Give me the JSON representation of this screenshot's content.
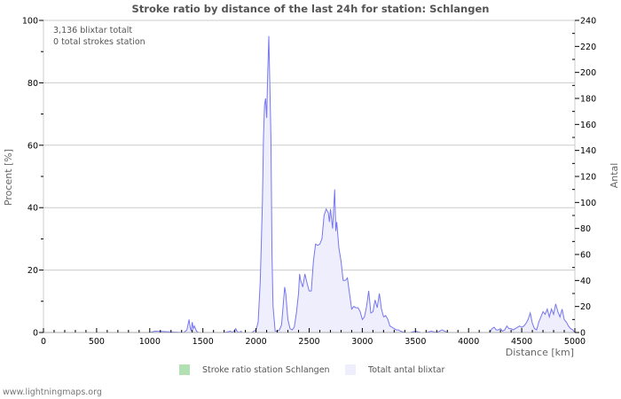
{
  "title": "Stroke ratio by distance of the last 24h for station: Schlangen",
  "info": {
    "total_strokes": "3,136 blixtar totalt",
    "station_strokes": "0 total strokes station"
  },
  "axes": {
    "left_label": "Procent   [%]",
    "right_label": "Antal",
    "x_label": "Distance   [km]"
  },
  "legend": {
    "items": [
      {
        "label": "Stroke ratio station Schlangen",
        "color": "#b3e0b3"
      },
      {
        "label": "Totalt antal blixtar",
        "color": "#eeeefc"
      }
    ]
  },
  "footer": "www.lightningmaps.org",
  "colors": {
    "line": "#7777ee",
    "fill": "#eeeefc",
    "grid": "#cccccc"
  },
  "chart_data": {
    "type": "area",
    "title": "Stroke ratio by distance of the last 24h for station: Schlangen",
    "xlabel": "Distance [km]",
    "ylabel": "Procent [%]",
    "ylabel_right": "Antal",
    "xlim": [
      0,
      5000
    ],
    "ylim": [
      0,
      100
    ],
    "ylim_right": [
      0,
      240
    ],
    "x_ticks": [
      0,
      500,
      1000,
      1500,
      2000,
      2500,
      3000,
      3500,
      4000,
      4500,
      5000
    ],
    "y_ticks": [
      0,
      20,
      40,
      60,
      80,
      100
    ],
    "y_ticks_right": [
      0,
      20,
      40,
      60,
      80,
      100,
      120,
      140,
      160,
      180,
      200,
      220,
      240
    ],
    "grid": true,
    "legend_position": "bottom",
    "series": [
      {
        "name": "Stroke ratio station Schlangen",
        "axis": "left",
        "x": [],
        "values": []
      },
      {
        "name": "Totalt antal blixtar",
        "axis": "right",
        "x": [
          0,
          1000,
          1050,
          1320,
          1350,
          1370,
          1380,
          1390,
          1400,
          1410,
          1420,
          1440,
          1460,
          1500,
          1700,
          1760,
          1780,
          1800,
          1810,
          1820,
          1840,
          1860,
          1870,
          1900,
          1960,
          2000,
          2020,
          2040,
          2060,
          2070,
          2080,
          2090,
          2100,
          2110,
          2120,
          2130,
          2140,
          2150,
          2160,
          2180,
          2200,
          2220,
          2240,
          2260,
          2270,
          2280,
          2300,
          2320,
          2340,
          2360,
          2380,
          2400,
          2410,
          2420,
          2440,
          2460,
          2480,
          2500,
          2520,
          2540,
          2560,
          2580,
          2600,
          2620,
          2640,
          2660,
          2680,
          2690,
          2700,
          2720,
          2740,
          2750,
          2760,
          2780,
          2800,
          2820,
          2840,
          2860,
          2880,
          2900,
          2920,
          2940,
          2960,
          2980,
          3000,
          3020,
          3040,
          3060,
          3080,
          3100,
          3120,
          3140,
          3160,
          3180,
          3200,
          3220,
          3240,
          3260,
          3280,
          3300,
          3320,
          3340,
          3360,
          3400,
          3450,
          3500,
          3550,
          3600,
          3650,
          3700,
          3750,
          3800,
          3900,
          4000,
          4100,
          4200,
          4220,
          4240,
          4260,
          4280,
          4300,
          4320,
          4340,
          4360,
          4380,
          4400,
          4420,
          4440,
          4460,
          4480,
          4500,
          4520,
          4540,
          4560,
          4580,
          4600,
          4620,
          4640,
          4660,
          4680,
          4700,
          4720,
          4740,
          4760,
          4780,
          4800,
          4820,
          4840,
          4860,
          4880,
          4900,
          4920,
          4940,
          4960,
          4980,
          5000
        ],
        "values": [
          0,
          0,
          1,
          0,
          2,
          10,
          4,
          1,
          8,
          3,
          5,
          1,
          0,
          0,
          0,
          1,
          0,
          2,
          3,
          1,
          0,
          1,
          0,
          0,
          0,
          2,
          8,
          40,
          100,
          150,
          175,
          180,
          165,
          200,
          228,
          190,
          150,
          60,
          20,
          1,
          1,
          2,
          6,
          25,
          35,
          30,
          10,
          3,
          2,
          4,
          15,
          30,
          45,
          40,
          35,
          45,
          38,
          32,
          32,
          55,
          68,
          67,
          68,
          72,
          90,
          95,
          92,
          85,
          95,
          80,
          110,
          78,
          85,
          65,
          55,
          40,
          40,
          42,
          30,
          18,
          20,
          19,
          19,
          16,
          10,
          12,
          20,
          32,
          15,
          16,
          25,
          19,
          30,
          18,
          12,
          13,
          10,
          5,
          4,
          3,
          2,
          2,
          1,
          0,
          0,
          1,
          0,
          0,
          1,
          0,
          2,
          0,
          0,
          0,
          0,
          0,
          3,
          4,
          2,
          2,
          3,
          1,
          2,
          5,
          3,
          3,
          2,
          3,
          4,
          5,
          4,
          5,
          7,
          10,
          15,
          7,
          3,
          2,
          8,
          12,
          16,
          14,
          18,
          12,
          18,
          14,
          22,
          16,
          12,
          18,
          10,
          8,
          5,
          3,
          2,
          0
        ]
      }
    ]
  }
}
